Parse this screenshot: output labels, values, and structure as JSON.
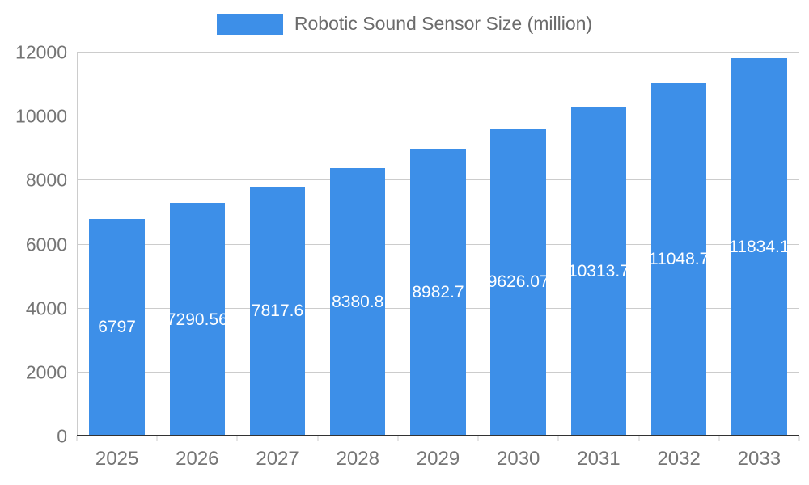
{
  "chart_data": {
    "type": "bar",
    "title": "Robotic Sound Sensor Size (million)",
    "categories": [
      "2025",
      "2026",
      "2027",
      "2028",
      "2029",
      "2030",
      "2031",
      "2032",
      "2033"
    ],
    "values": [
      6797,
      7290.56,
      7817.6,
      8380.8,
      8982.7,
      9626.07,
      10313.7,
      11048.7,
      11834.1
    ],
    "bar_labels": [
      "6797",
      "7290.56",
      "7817.6",
      "8380.8",
      "8982.7",
      "9626.07",
      "10313.7",
      "11048.7",
      "11834.1"
    ],
    "xlabel": "",
    "ylabel": "",
    "ylim": [
      0,
      12000
    ],
    "yticks": [
      0,
      2000,
      4000,
      6000,
      8000,
      10000,
      12000
    ],
    "grid": true,
    "legend_position": "top",
    "bar_color": "#3D8FE8",
    "axis_text_color": "#757575",
    "gridline_color": "#cccccc",
    "baseline_color": "#333333"
  }
}
